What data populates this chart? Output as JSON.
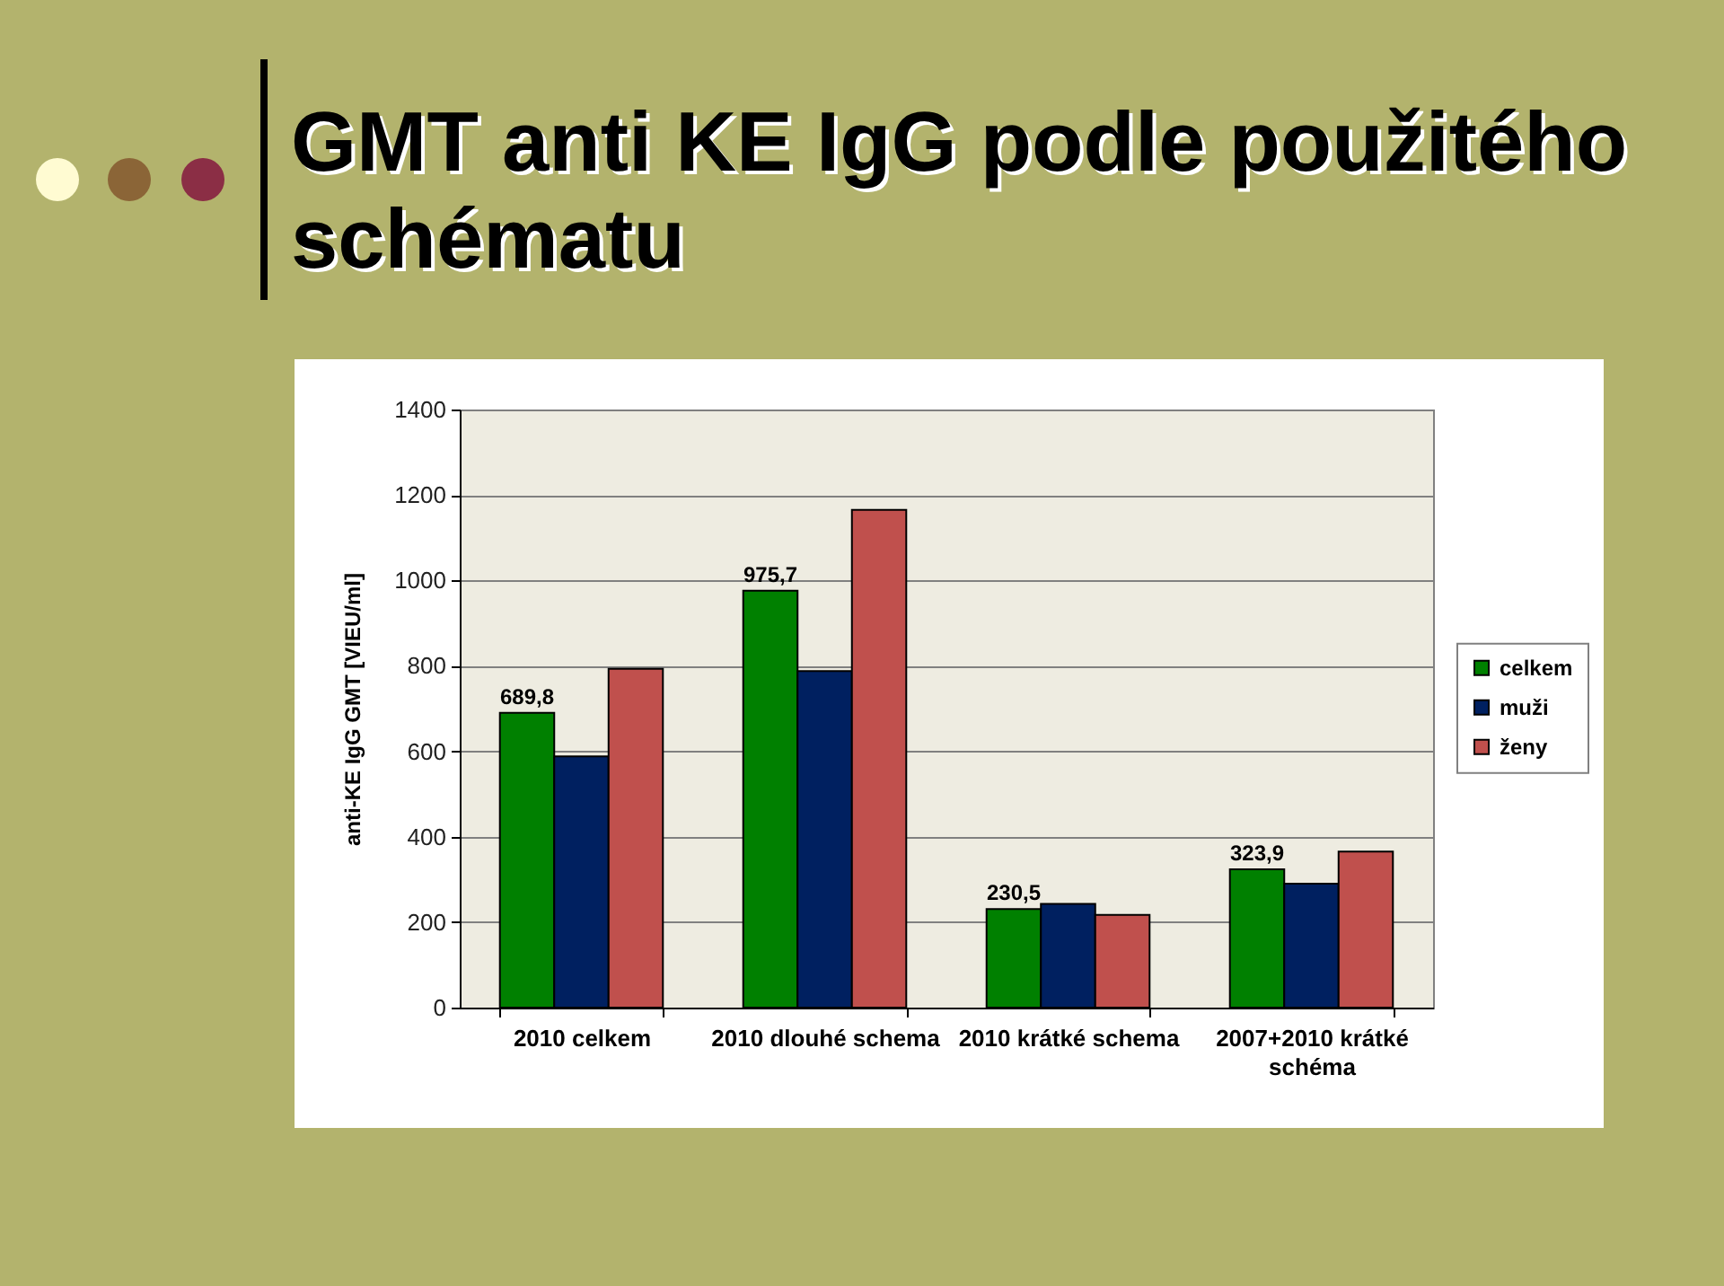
{
  "chart_data": {
    "type": "bar",
    "title": "GMT anti KE IgG podle použitého schématu",
    "ylabel": "anti-KE IgG GMT [VIEU/ml]",
    "categories": [
      "2010 celkem",
      "2010 dlouhé schema",
      "2010 krátké schema",
      "2007+2010 krátké schéma"
    ],
    "series": [
      {
        "name": "celkem",
        "color": "#008000",
        "values": [
          689.8,
          975.7,
          230.5,
          323.9
        ],
        "value_labels": [
          "689,8",
          "975,7",
          "230,5",
          "323,9"
        ]
      },
      {
        "name": "muži",
        "color": "#002060",
        "values": [
          588,
          788,
          243,
          290
        ]
      },
      {
        "name": "ženy",
        "color": "#c0504d",
        "values": [
          793,
          1165,
          217,
          365
        ]
      }
    ],
    "ylim": [
      0,
      1400
    ],
    "yticks": [
      0,
      200,
      400,
      600,
      800,
      1000,
      1200,
      1400
    ],
    "grid": "y",
    "legend": "right"
  }
}
